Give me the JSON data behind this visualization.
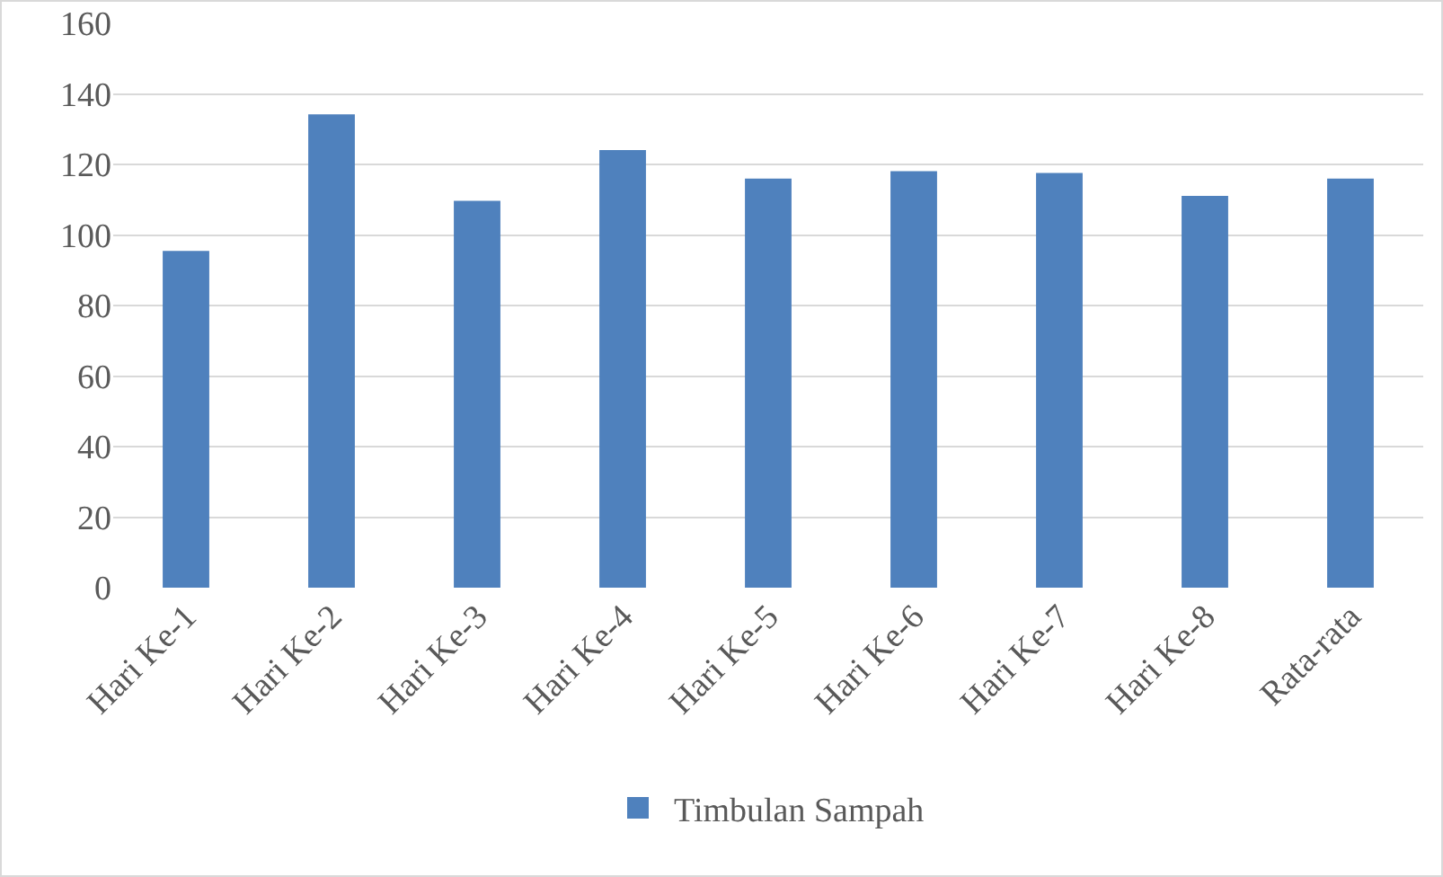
{
  "chart_data": {
    "type": "bar",
    "categories": [
      "Hari Ke-1",
      "Hari Ke-2",
      "Hari Ke-3",
      "Hari Ke-4",
      "Hari Ke-5",
      "Hari Ke-6",
      "Hari Ke-7",
      "Hari Ke-8",
      "Rata-rata"
    ],
    "series": [
      {
        "name": "Timbulan Sampah",
        "color": "#4f81bd",
        "values": [
          95.5,
          134.2,
          109.7,
          124.1,
          116,
          118.1,
          117.6,
          111.1,
          116
        ]
      }
    ],
    "ylim": [
      0,
      160
    ],
    "yticks": [
      0,
      20,
      40,
      60,
      80,
      100,
      120,
      140,
      160
    ],
    "grid": "y",
    "legend": "bottom"
  }
}
